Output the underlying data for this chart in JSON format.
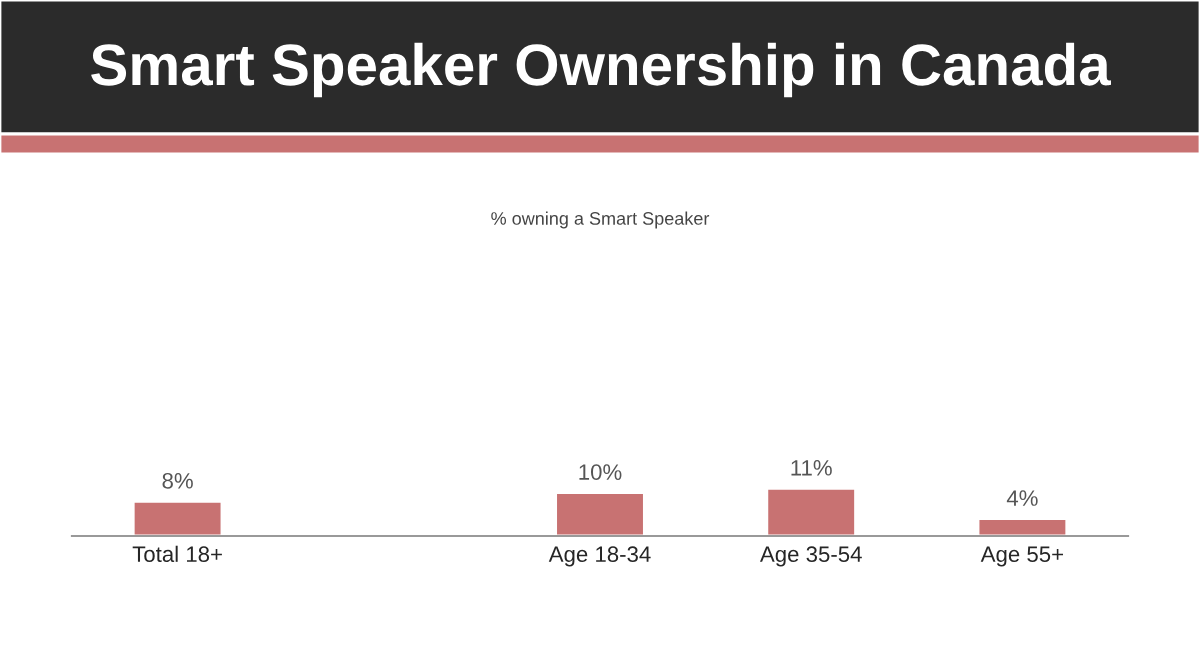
{
  "chart_data": {
    "type": "bar",
    "title": "Smart Speaker Ownership in Canada",
    "subtitle": "% owning a Smart Speaker",
    "categories": [
      "Total 18+",
      null,
      "Age 18-34",
      "Age 35-54",
      "Age 55+"
    ],
    "values": [
      8,
      null,
      10,
      11,
      4
    ],
    "value_labels": [
      "8%",
      null,
      "10%",
      "11%",
      "4%"
    ],
    "color": "#c87272",
    "tick_labels": "x",
    "grid": false,
    "legend": false
  }
}
